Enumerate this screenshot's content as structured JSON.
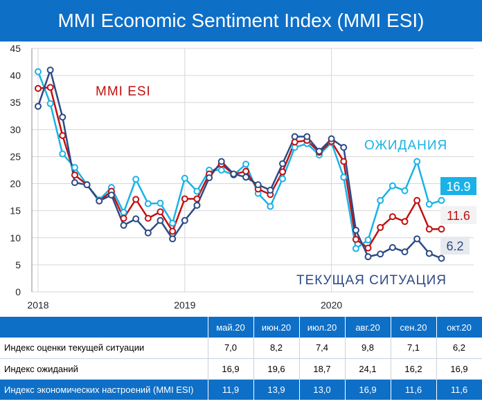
{
  "header": {
    "title": "MMI Economic Sentiment Index (MMI ESI)"
  },
  "colors": {
    "header_bg": "#0e6fc7",
    "expectations": "#1ab2e6",
    "esi": "#c01010",
    "current": "#2c4a86",
    "highlight_row": "#0e6fc7"
  },
  "chart_data": {
    "type": "line",
    "x": [
      "2018-01",
      "2018-02",
      "2018-03",
      "2018-04",
      "2018-05",
      "2018-06",
      "2018-07",
      "2018-08",
      "2018-09",
      "2018-10",
      "2018-11",
      "2018-12",
      "2019-01",
      "2019-02",
      "2019-03",
      "2019-04",
      "2019-05",
      "2019-06",
      "2019-07",
      "2019-08",
      "2019-09",
      "2019-10",
      "2019-11",
      "2019-12",
      "2020-01",
      "2020-02",
      "2020-03",
      "2020-04",
      "2020-05",
      "2020-06",
      "2020-07",
      "2020-08",
      "2020-09",
      "2020-10"
    ],
    "x_ticks": [
      "2018",
      "2019",
      "2020"
    ],
    "y_ticks": [
      "0",
      "5",
      "10",
      "15",
      "20",
      "25",
      "30",
      "35",
      "40",
      "45"
    ],
    "ylim": [
      0,
      45
    ],
    "grid": true,
    "series": [
      {
        "name": "ОЖИДАНИЯ",
        "color": "#1ab2e6",
        "values": [
          40.7,
          34.8,
          25.5,
          23.0,
          19.8,
          17.0,
          19.3,
          14.7,
          20.8,
          16.3,
          16.4,
          12.7,
          21.0,
          18.6,
          22.5,
          22.5,
          21.6,
          23.6,
          18.2,
          15.8,
          20.9,
          26.7,
          27.4,
          25.3,
          27.6,
          21.2,
          8.0,
          9.6,
          16.9,
          19.6,
          18.7,
          24.1,
          16.2,
          16.9
        ]
      },
      {
        "name": "MMI ESI",
        "color": "#c01010",
        "values": [
          37.6,
          37.8,
          28.9,
          21.6,
          19.8,
          16.8,
          18.6,
          13.6,
          17.1,
          13.6,
          14.8,
          11.2,
          17.2,
          17.2,
          21.8,
          23.6,
          21.7,
          22.3,
          19.0,
          18.0,
          22.2,
          27.7,
          28.0,
          25.8,
          27.8,
          24.1,
          9.7,
          8.1,
          11.9,
          13.9,
          13.0,
          16.9,
          11.6,
          11.6
        ]
      },
      {
        "name": "ТЕКУЩАЯ СИТУАЦИЯ",
        "color": "#2c4a86",
        "values": [
          34.3,
          41.0,
          32.3,
          20.2,
          19.8,
          16.8,
          17.9,
          12.3,
          13.5,
          10.9,
          13.2,
          9.8,
          13.2,
          16.0,
          21.1,
          24.1,
          21.8,
          21.2,
          19.8,
          18.8,
          23.7,
          28.7,
          28.7,
          26.0,
          28.3,
          26.7,
          11.4,
          6.5,
          7.0,
          8.2,
          7.4,
          9.8,
          7.1,
          6.2
        ]
      }
    ],
    "annotations": {
      "esi_label": "MMI ESI",
      "expectations_label": "ОЖИДАНИЯ",
      "current_label": "ТЕКУЩАЯ СИТУАЦИЯ",
      "end_expectations": "16.9",
      "end_esi": "11.6",
      "end_current": "6.2"
    }
  },
  "table": {
    "columns": [
      "май.20",
      "июн.20",
      "июл.20",
      "авг.20",
      "сен.20",
      "окт.20"
    ],
    "rows": [
      {
        "label": "Индекс оценки текущей ситуации",
        "values": [
          "7,0",
          "8,2",
          "7,4",
          "9,8",
          "7,1",
          "6,2"
        ]
      },
      {
        "label": "Индекс ожиданий",
        "values": [
          "16,9",
          "19,6",
          "18,7",
          "24,1",
          "16,2",
          "16,9"
        ]
      },
      {
        "label": "Индекс экономических настроений (MMI ESI)",
        "values": [
          "11,9",
          "13,9",
          "13,0",
          "16,9",
          "11,6",
          "11,6"
        ]
      }
    ]
  }
}
